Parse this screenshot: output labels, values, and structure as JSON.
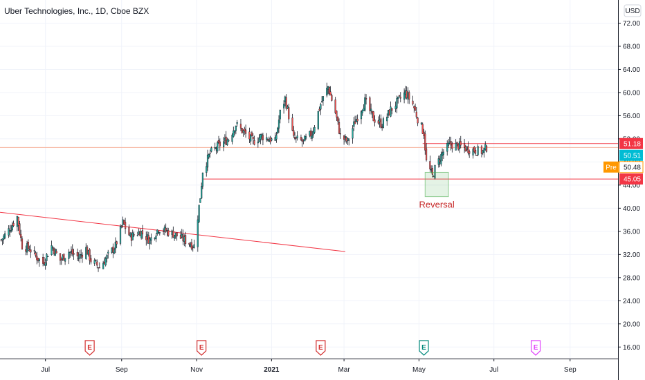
{
  "chart_data": {
    "type": "candlestick",
    "title": "Uber Technologies, Inc., 1D, Cboe BZX",
    "currency": "USD",
    "y_ticks": [
      "16.00",
      "20.00",
      "24.00",
      "28.00",
      "32.00",
      "36.00",
      "40.00",
      "44.00",
      "48.00",
      "52.00",
      "56.00",
      "60.00",
      "64.00",
      "68.00",
      "72.00"
    ],
    "ylim": [
      14,
      76
    ],
    "x_tick_labels": [
      {
        "label": "Jul",
        "date": "2020-07-01",
        "bold": false
      },
      {
        "label": "Sep",
        "date": "2020-09-01",
        "bold": false
      },
      {
        "label": "Nov",
        "date": "2020-11-01",
        "bold": false
      },
      {
        "label": "2021",
        "date": "2021-01-01",
        "bold": true
      },
      {
        "label": "Mar",
        "date": "2021-03-01",
        "bold": false
      },
      {
        "label": "May",
        "date": "2021-05-01",
        "bold": false
      },
      {
        "label": "Jul",
        "date": "2021-07-01",
        "bold": false
      },
      {
        "label": "Sep",
        "date": "2021-09-01",
        "bold": false
      }
    ],
    "xlim": [
      "2020-05-25",
      "2021-10-10"
    ],
    "candle_anchors": [
      [
        "2020-05-26",
        34.5
      ],
      [
        "2020-06-03",
        36.8
      ],
      [
        "2020-06-08",
        38.5
      ],
      [
        "2020-06-12",
        33.5
      ],
      [
        "2020-06-18",
        33.0
      ],
      [
        "2020-06-24",
        31.5
      ],
      [
        "2020-06-29",
        30.5
      ],
      [
        "2020-07-06",
        33.5
      ],
      [
        "2020-07-13",
        31.0
      ],
      [
        "2020-07-20",
        32.5
      ],
      [
        "2020-07-28",
        31.5
      ],
      [
        "2020-08-03",
        33.0
      ],
      [
        "2020-08-07",
        31.0
      ],
      [
        "2020-08-14",
        29.8
      ],
      [
        "2020-08-20",
        31.5
      ],
      [
        "2020-08-27",
        33.5
      ],
      [
        "2020-09-02",
        37.5
      ],
      [
        "2020-09-08",
        35.0
      ],
      [
        "2020-09-16",
        36.0
      ],
      [
        "2020-09-24",
        34.5
      ],
      [
        "2020-10-01",
        36.5
      ],
      [
        "2020-10-08",
        36.0
      ],
      [
        "2020-10-14",
        35.5
      ],
      [
        "2020-10-22",
        34.5
      ],
      [
        "2020-10-30",
        33.5
      ],
      [
        "2020-11-04",
        42.0
      ],
      [
        "2020-11-06",
        46.5
      ],
      [
        "2020-11-12",
        49.5
      ],
      [
        "2020-11-20",
        51.0
      ],
      [
        "2020-11-27",
        52.0
      ],
      [
        "2020-12-03",
        54.5
      ],
      [
        "2020-12-10",
        53.0
      ],
      [
        "2020-12-17",
        51.5
      ],
      [
        "2020-12-24",
        52.5
      ],
      [
        "2021-01-04",
        51.5
      ],
      [
        "2021-01-08",
        56.5
      ],
      [
        "2021-01-12",
        59.0
      ],
      [
        "2021-01-19",
        52.0
      ],
      [
        "2021-01-27",
        51.5
      ],
      [
        "2021-02-03",
        53.0
      ],
      [
        "2021-02-10",
        58.0
      ],
      [
        "2021-02-16",
        61.0
      ],
      [
        "2021-02-22",
        56.5
      ],
      [
        "2021-02-26",
        52.5
      ],
      [
        "2021-03-04",
        51.5
      ],
      [
        "2021-03-10",
        55.0
      ],
      [
        "2021-03-18",
        58.5
      ],
      [
        "2021-03-25",
        55.5
      ],
      [
        "2021-04-01",
        54.5
      ],
      [
        "2021-04-08",
        57.0
      ],
      [
        "2021-04-14",
        58.5
      ],
      [
        "2021-04-20",
        60.0
      ],
      [
        "2021-04-26",
        58.0
      ],
      [
        "2021-04-30",
        55.5
      ],
      [
        "2021-05-05",
        53.0
      ],
      [
        "2021-05-07",
        48.0
      ],
      [
        "2021-05-12",
        45.5
      ],
      [
        "2021-05-14",
        46.8
      ],
      [
        "2021-05-20",
        49.5
      ],
      [
        "2021-05-26",
        51.0
      ],
      [
        "2021-06-02",
        50.8
      ],
      [
        "2021-06-09",
        50.3
      ],
      [
        "2021-06-16",
        50.0
      ],
      [
        "2021-06-22",
        49.8
      ],
      [
        "2021-06-25",
        50.5
      ]
    ],
    "price_labels": [
      {
        "value": "51.18",
        "price": 51.18,
        "color": "#f23645"
      },
      {
        "value": "50.51",
        "price": 50.51,
        "color": "#00bcd4"
      },
      {
        "value": "50.48",
        "price": 50.48,
        "color": "#ff9800",
        "prefix": "Pre"
      },
      {
        "value": "45.05",
        "price": 45.05,
        "color": "#f23645"
      }
    ],
    "horizontal_lines": [
      {
        "price": 51.18,
        "from": "2021-05-04",
        "color": "#f23645"
      },
      {
        "price": 50.51,
        "from": "2020-05-25",
        "color": "#f7b7a3"
      },
      {
        "price": 45.05,
        "from": "2020-11-06",
        "color": "#f23645"
      }
    ],
    "trend_line": {
      "start": [
        "2020-05-25",
        39.3
      ],
      "end": [
        "2021-03-02",
        32.5
      ],
      "color": "#f23645"
    },
    "annotation": {
      "text": "Reversal",
      "box_start": "2021-05-06",
      "box_end": "2021-05-25",
      "box_low": 42.0,
      "box_high": 46.2
    },
    "earnings_markers": [
      {
        "label": "E",
        "date": "2020-08-06",
        "color": "#d32f2f"
      },
      {
        "label": "E",
        "date": "2020-11-05",
        "color": "#d32f2f"
      },
      {
        "label": "E",
        "date": "2021-02-10",
        "color": "#d32f2f"
      },
      {
        "label": "E",
        "date": "2021-05-05",
        "color": "#00897b"
      },
      {
        "label": "E",
        "date": "2021-08-04",
        "color": "#e040fb"
      }
    ],
    "colors": {
      "up": "#26a69a",
      "down": "#ef5350",
      "wick": "#131722",
      "axis": "#131722"
    }
  }
}
